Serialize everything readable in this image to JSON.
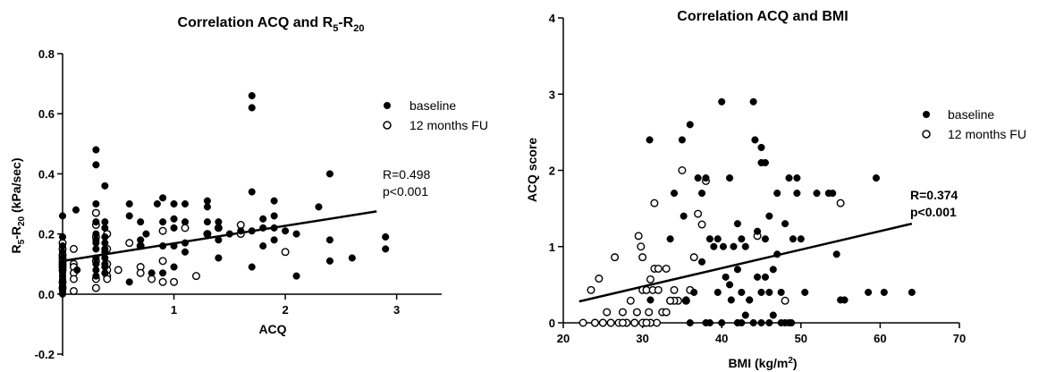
{
  "chart_data": [
    {
      "type": "scatter",
      "title": "Correlation ACQ and R5-R20",
      "title_parts": {
        "main": "Correlation ACQ and R",
        "sub1": "5",
        "dash": "-R",
        "sub2": "20"
      },
      "xlabel": "ACQ",
      "ylabel": "R5-R20 (kPa/sec)",
      "ylabel_parts": {
        "r1": "R",
        "sub1": "5",
        "dash": "-R",
        "sub2": "20",
        "rest": " (kPa/sec)"
      },
      "xlim": [
        0,
        3.3
      ],
      "ylim": [
        -0.2,
        0.8
      ],
      "xticks": [
        1,
        2,
        3
      ],
      "xtick_labels": [
        "1",
        "2",
        "3"
      ],
      "yticks": [
        -0.2,
        0.0,
        0.2,
        0.4,
        0.6,
        0.8
      ],
      "ytick_labels": [
        "-0.2",
        "0.0",
        "0.2",
        "0.4",
        "0.6",
        "0.8"
      ],
      "grid": false,
      "legend_position": "top-right",
      "annotation": [
        "R=0.498",
        "p<0.001"
      ],
      "annotation_bold": false,
      "regression": {
        "x": [
          0,
          2.82
        ],
        "y": [
          0.11,
          0.275
        ]
      },
      "series": [
        {
          "name": "baseline",
          "marker": "filled",
          "x": [
            0.0,
            0.0,
            0.0,
            0.0,
            0.0,
            0.0,
            0.0,
            0.0,
            0.0,
            0.0,
            0.0,
            0.0,
            0.0,
            0.0,
            0.0,
            0.0,
            0.12,
            0.13,
            0.3,
            0.3,
            0.3,
            0.3,
            0.3,
            0.3,
            0.3,
            0.3,
            0.3,
            0.3,
            0.3,
            0.3,
            0.38,
            0.38,
            0.38,
            0.38,
            0.38,
            0.38,
            0.38,
            0.38,
            0.38,
            0.38,
            0.38,
            0.6,
            0.6,
            0.6,
            0.7,
            0.7,
            0.7,
            0.75,
            0.8,
            0.85,
            0.9,
            0.9,
            0.9,
            0.9,
            1.0,
            1.0,
            1.0,
            1.0,
            1.0,
            1.1,
            1.1,
            1.1,
            1.1,
            1.3,
            1.3,
            1.3,
            1.3,
            1.4,
            1.4,
            1.4,
            1.4,
            1.5,
            1.6,
            1.7,
            1.7,
            1.7,
            1.7,
            1.7,
            1.8,
            1.8,
            1.8,
            1.9,
            1.9,
            1.9,
            1.9,
            2.0,
            2.1,
            2.1,
            2.3,
            2.4,
            2.4,
            2.4,
            2.6,
            2.9,
            2.9
          ],
          "y": [
            0.26,
            0.19,
            0.16,
            0.14,
            0.12,
            0.1,
            0.09,
            0.08,
            0.07,
            0.06,
            0.05,
            0.04,
            0.03,
            0.02,
            0.01,
            0.0,
            0.28,
            0.08,
            0.48,
            0.43,
            0.3,
            0.24,
            0.2,
            0.18,
            0.17,
            0.15,
            0.12,
            0.1,
            0.08,
            0.06,
            0.36,
            0.24,
            0.22,
            0.19,
            0.17,
            0.15,
            0.14,
            0.12,
            0.1,
            0.09,
            0.07,
            0.3,
            0.26,
            0.04,
            0.24,
            0.18,
            0.16,
            0.2,
            0.07,
            0.3,
            0.32,
            0.24,
            0.16,
            0.07,
            0.3,
            0.25,
            0.22,
            0.16,
            0.09,
            0.3,
            0.24,
            0.17,
            0.14,
            0.31,
            0.29,
            0.24,
            0.2,
            0.24,
            0.22,
            0.18,
            0.12,
            0.2,
            0.21,
            0.66,
            0.62,
            0.34,
            0.21,
            0.09,
            0.25,
            0.22,
            0.16,
            0.31,
            0.26,
            0.22,
            0.18,
            0.21,
            0.2,
            0.06,
            0.29,
            0.4,
            0.18,
            0.11,
            0.12,
            0.19,
            0.15
          ]
        },
        {
          "name": "12 months FU",
          "marker": "open",
          "x": [
            0.0,
            0.0,
            0.0,
            0.0,
            0.0,
            0.0,
            0.0,
            0.0,
            0.0,
            0.0,
            0.1,
            0.1,
            0.1,
            0.1,
            0.1,
            0.1,
            0.3,
            0.3,
            0.3,
            0.3,
            0.3,
            0.3,
            0.4,
            0.4,
            0.4,
            0.4,
            0.4,
            0.4,
            0.5,
            0.6,
            0.7,
            0.7,
            0.7,
            0.8,
            0.9,
            0.9,
            0.9,
            1.0,
            1.1,
            1.2,
            1.3,
            1.4,
            1.6,
            1.6,
            2.0
          ],
          "y": [
            0.17,
            0.15,
            0.13,
            0.12,
            0.11,
            0.1,
            0.09,
            0.08,
            0.04,
            0.02,
            0.15,
            0.1,
            0.09,
            0.07,
            0.05,
            0.01,
            0.27,
            0.23,
            0.19,
            0.11,
            0.05,
            0.02,
            0.2,
            0.15,
            0.1,
            0.08,
            0.06,
            0.05,
            0.08,
            0.17,
            0.16,
            0.09,
            0.07,
            0.05,
            0.21,
            0.11,
            0.04,
            0.04,
            0.22,
            0.06,
            0.2,
            0.22,
            0.23,
            0.2,
            0.14
          ]
        }
      ]
    },
    {
      "type": "scatter",
      "title": "Correlation ACQ and BMI",
      "xlabel": "BMI (kg/m2)",
      "xlabel_parts": {
        "main": "BMI (kg/m",
        "sup": "2",
        "rest": ")"
      },
      "ylabel": "ACQ score",
      "xlim": [
        20,
        70
      ],
      "ylim": [
        0,
        4
      ],
      "xticks": [
        20,
        30,
        40,
        50,
        60,
        70
      ],
      "xtick_labels": [
        "20",
        "30",
        "40",
        "50",
        "60",
        "70"
      ],
      "yticks": [
        0,
        1,
        2,
        3,
        4
      ],
      "ytick_labels": [
        "0",
        "1",
        "2",
        "3",
        "4"
      ],
      "grid": false,
      "legend_position": "top-right",
      "annotation": [
        "R=0.374",
        "p<0.001"
      ],
      "annotation_bold": true,
      "regression": {
        "x": [
          22,
          64
        ],
        "y": [
          0.28,
          1.3
        ]
      },
      "series": [
        {
          "name": "baseline",
          "marker": "filled",
          "x": [
            30.9,
            31.0,
            33.5,
            34.0,
            35.0,
            35.2,
            35.5,
            36.0,
            36.5,
            37.0,
            37.5,
            38.0,
            38.5,
            39.0,
            39.5,
            40.0,
            40.2,
            40.5,
            41.0,
            41.2,
            41.5,
            42.0,
            42.0,
            42.5,
            42.5,
            43.0,
            43.0,
            43.5,
            44.0,
            44.2,
            44.5,
            44.5,
            45.0,
            45.0,
            45.0,
            45.5,
            45.5,
            46.0,
            46.0,
            46.5,
            47.0,
            47.0,
            47.5,
            48.0,
            48.5,
            48.8,
            49.0,
            49.5,
            49.5,
            50.0,
            50.5,
            52.0,
            53.5,
            54.0,
            54.5,
            55.0,
            55.5,
            58.5,
            59.5,
            60.5,
            64.0,
            36.0,
            38.0,
            40.0,
            42.0,
            44.0,
            46.0,
            48.0,
            37.5,
            41.0,
            43.5,
            46.5,
            39.5,
            42.5,
            45.5,
            47.5,
            35.5,
            38.5,
            42.0,
            45.0,
            48.5
          ],
          "y": [
            2.4,
            0.3,
            1.1,
            1.7,
            2.4,
            1.4,
            0.3,
            2.6,
            0.4,
            1.9,
            1.7,
            1.9,
            1.1,
            1.0,
            1.1,
            2.9,
            1.0,
            0.6,
            1.9,
            0.3,
            1.0,
            1.3,
            0.7,
            1.1,
            0.4,
            0.1,
            1.0,
            0.3,
            2.9,
            2.4,
            0.6,
            1.2,
            2.3,
            2.1,
            0.4,
            2.1,
            1.1,
            1.4,
            0.4,
            0.1,
            1.7,
            0.9,
            0.4,
            1.3,
            1.9,
            0.0,
            1.1,
            1.9,
            1.7,
            1.1,
            0.4,
            1.7,
            1.7,
            1.7,
            0.9,
            0.3,
            0.3,
            0.4,
            1.9,
            0.4,
            0.4,
            0.0,
            0.0,
            0.0,
            0.0,
            0.0,
            0.0,
            0.0,
            0.8,
            0.5,
            0.3,
            0.7,
            0.4,
            0.0,
            0.6,
            0.0,
            0.3,
            0.0,
            0.0,
            0.0,
            0.0
          ]
        },
        {
          "name": "12 months FU",
          "marker": "open",
          "x": [
            22.5,
            23.5,
            24.0,
            24.5,
            25.0,
            25.5,
            26.0,
            26.5,
            27.0,
            27.5,
            28.0,
            28.5,
            29.0,
            29.3,
            29.5,
            29.8,
            30.0,
            30.0,
            30.2,
            30.5,
            30.8,
            31.0,
            31.0,
            31.3,
            31.5,
            31.5,
            31.8,
            32.0,
            32.5,
            33.0,
            33.5,
            34.0,
            34.5,
            35.0,
            35.5,
            36.5,
            37.0,
            37.5,
            38.0,
            44.5,
            48.0,
            55.0,
            24.0,
            26.0,
            28.0,
            29.0,
            30.0,
            31.0,
            32.0,
            33.0,
            34.0,
            36.0,
            25.0,
            27.5,
            30.5,
            33.5,
            29.0
          ],
          "y": [
            0.0,
            0.43,
            0.0,
            0.58,
            0.0,
            0.14,
            0.0,
            0.86,
            0.0,
            0.14,
            0.0,
            0.29,
            0.0,
            0.14,
            1.14,
            1.0,
            0.86,
            0.43,
            0.0,
            0.43,
            0.14,
            0.0,
            0.57,
            0.43,
            1.57,
            0.71,
            0.0,
            0.71,
            0.14,
            0.71,
            0.29,
            0.43,
            0.29,
            2.0,
            0.29,
            0.86,
            1.43,
            1.29,
            1.86,
            1.14,
            0.29,
            1.57,
            0.0,
            0.0,
            0.0,
            0.0,
            0.0,
            0.0,
            0.43,
            0.14,
            0.29,
            0.43,
            0.0,
            0.0,
            0.0,
            0.29,
            0.0
          ]
        }
      ]
    }
  ]
}
